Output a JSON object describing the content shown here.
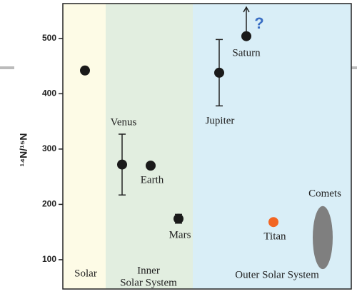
{
  "chart_data": {
    "type": "scatter",
    "ylabel": "¹⁴N/¹⁵N",
    "ylim": [
      47,
      563
    ],
    "yticks": [
      100,
      200,
      300,
      400,
      500
    ],
    "regions": [
      {
        "lines": [
          "Solar"
        ],
        "color": "#fdfbe6"
      },
      {
        "lines": [
          "Inner",
          "Solar System"
        ],
        "color": "#e2eee0"
      },
      {
        "lines": [
          "Outer Solar System"
        ],
        "color": "#d9eef7"
      }
    ],
    "categories": [
      null,
      "Venus",
      "Earth",
      "Mars",
      "Jupiter",
      "Saturn",
      "Titan"
    ],
    "values": [
      442,
      272,
      270,
      174,
      438,
      504,
      168
    ],
    "errors": [
      null,
      55,
      null,
      8,
      60,
      null,
      null
    ],
    "lower_limit": [
      false,
      false,
      false,
      false,
      false,
      true,
      false
    ],
    "colors": [
      "#1a1a1a",
      "#1a1a1a",
      "#1a1a1a",
      "#1a1a1a",
      "#1a1a1a",
      "#1a1a1a",
      "#f26522"
    ],
    "comets": {
      "name": "Comets",
      "range": [
        83,
        197
      ],
      "color": "#7f7f7f"
    },
    "annotation": {
      "text": "?",
      "color": "#3b6fc4"
    }
  }
}
